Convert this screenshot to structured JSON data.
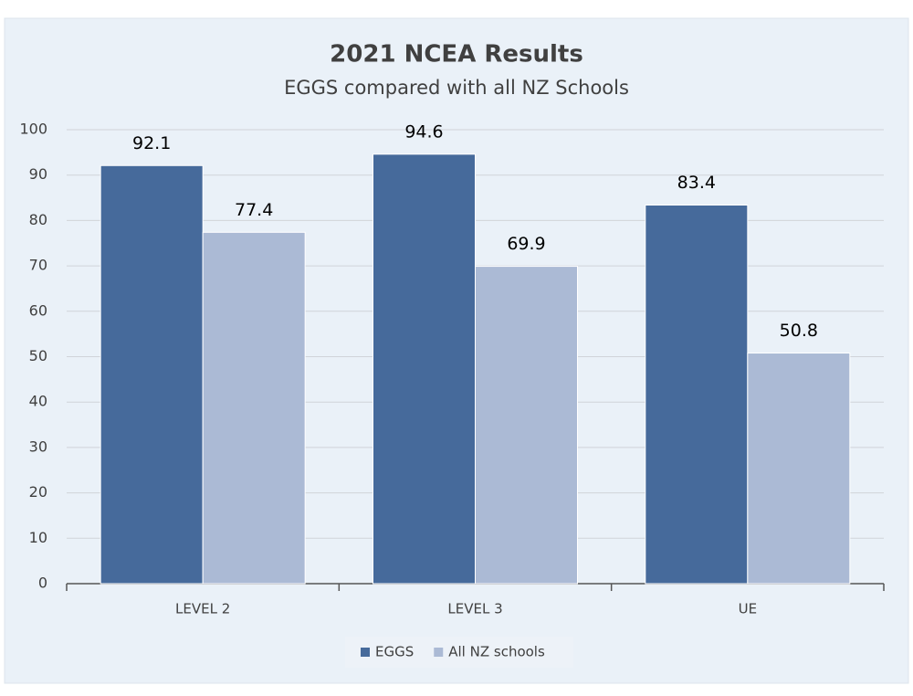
{
  "chart_data": {
    "type": "bar",
    "title": "2021 NCEA Results",
    "subtitle": "EGGS compared with all NZ Schools",
    "categories": [
      "LEVEL 2",
      "LEVEL 3",
      "UE"
    ],
    "series": [
      {
        "name": "EGGS",
        "color": "#466a9b",
        "values": [
          92.1,
          94.6,
          83.4
        ]
      },
      {
        "name": "All NZ schools",
        "color": "#abbad5",
        "values": [
          77.4,
          69.9,
          50.8
        ]
      }
    ],
    "ylim": [
      0,
      100
    ],
    "yticks": [
      0,
      10,
      20,
      30,
      40,
      50,
      60,
      70,
      80,
      90,
      100
    ],
    "grid": true,
    "legend": "bottom"
  }
}
